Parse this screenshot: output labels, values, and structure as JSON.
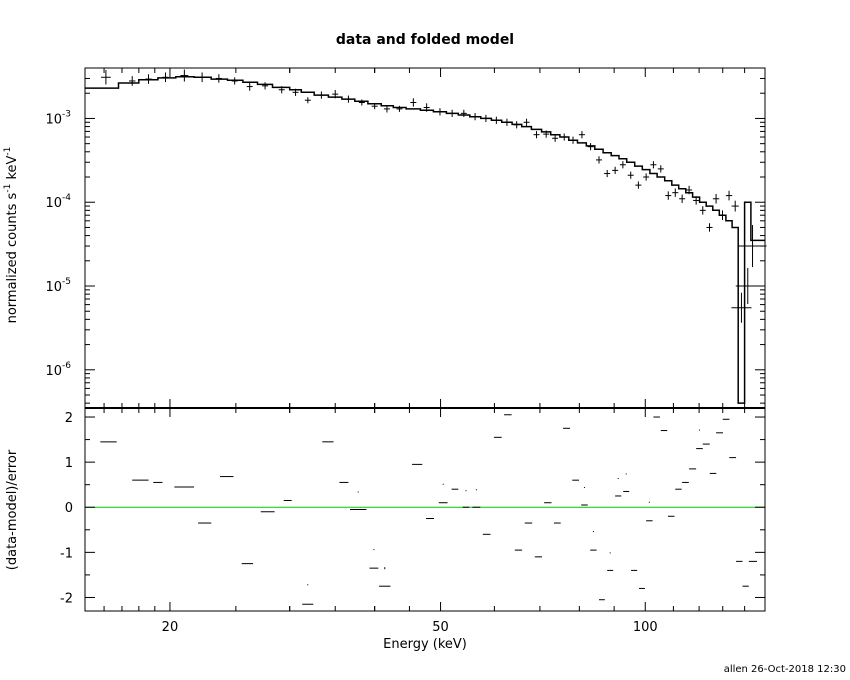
{
  "footer": "allen 26-Oct-2018 12:30",
  "colors": {
    "axis": "#000000",
    "zero_line": "#00cc00",
    "data": "#000000"
  },
  "chart_data": [
    {
      "type": "scatter",
      "title": "data and folded model",
      "xlabel": "",
      "ylabel_main": "normalized counts s",
      "ylabel_tail": " keV",
      "ylabel_sup": "-1",
      "yscale": "log",
      "xscale": "log",
      "xlim": [
        15,
        150
      ],
      "ylim": [
        3.5e-07,
        0.004
      ],
      "yticks": [
        {
          "value": 1e-06,
          "base": "10",
          "exp": "-6"
        },
        {
          "value": 1e-05,
          "base": "10",
          "exp": "-5"
        },
        {
          "value": 0.0001,
          "base": "10",
          "exp": "-4"
        },
        {
          "value": 0.001,
          "base": "10",
          "exp": "-3"
        }
      ],
      "series": [
        {
          "style": "crosses",
          "points": [
            [
              16.1,
              0.0031,
              1.2
            ],
            [
              17.6,
              0.0028,
              0.8
            ],
            [
              18.6,
              0.00295,
              0.8
            ],
            [
              19.7,
              0.0031,
              0.8
            ],
            [
              21.0,
              0.00325,
              1.0
            ],
            [
              22.3,
              0.0031,
              0.8
            ],
            [
              23.6,
              0.003,
              0.7
            ],
            [
              24.9,
              0.0028,
              0.6
            ],
            [
              26.2,
              0.0024,
              0.7
            ],
            [
              27.6,
              0.00245,
              0.6
            ],
            [
              29.2,
              0.0022,
              0.6
            ],
            [
              30.6,
              0.00205,
              0.6
            ],
            [
              31.9,
              0.00165,
              0.5
            ],
            [
              33.4,
              0.0019,
              0.6
            ],
            [
              35.0,
              0.00195,
              0.7
            ],
            [
              36.6,
              0.0017,
              0.6
            ],
            [
              38.3,
              0.00155,
              0.5
            ],
            [
              40.0,
              0.0014,
              0.5
            ],
            [
              41.7,
              0.0013,
              0.6
            ],
            [
              43.5,
              0.0013,
              0.5
            ],
            [
              45.6,
              0.00155,
              0.7
            ],
            [
              47.7,
              0.00135,
              0.7
            ],
            [
              49.9,
              0.0012,
              0.6
            ],
            [
              52.0,
              0.00115,
              0.6
            ],
            [
              54.1,
              0.00115,
              0.6
            ],
            [
              56.2,
              0.00105,
              0.6
            ],
            [
              58.3,
              0.001,
              0.6
            ],
            [
              60.4,
              0.00095,
              0.6
            ],
            [
              62.6,
              0.0009,
              0.6
            ],
            [
              64.7,
              0.00084,
              0.6
            ],
            [
              66.9,
              0.0009,
              0.6
            ],
            [
              69.2,
              0.00064,
              0.6
            ],
            [
              71.5,
              0.00065,
              0.6
            ],
            [
              73.7,
              0.00058,
              0.6
            ],
            [
              76.0,
              0.0006,
              0.6
            ],
            [
              78.3,
              0.00055,
              0.6
            ],
            [
              80.7,
              0.00064,
              0.6
            ],
            [
              83.1,
              0.00046,
              0.6
            ],
            [
              85.5,
              0.00032,
              0.6
            ],
            [
              87.9,
              0.00022,
              0.6
            ],
            [
              90.3,
              0.00024,
              0.6
            ],
            [
              92.7,
              0.00028,
              0.6
            ],
            [
              95.2,
              0.00021,
              0.6
            ],
            [
              97.7,
              0.00016,
              0.6
            ],
            [
              100.3,
              0.0002,
              0.6
            ],
            [
              102.8,
              0.00028,
              0.6
            ],
            [
              105.4,
              0.00025,
              0.6
            ],
            [
              108.1,
              0.00012,
              0.7
            ],
            [
              110.7,
              0.00013,
              0.7
            ],
            [
              113.3,
              0.00011,
              0.7
            ],
            [
              116.0,
              0.00014,
              0.7
            ],
            [
              118.8,
              0.000105,
              0.7
            ],
            [
              121.5,
              8e-05,
              0.7
            ],
            [
              124.3,
              5e-05,
              0.7
            ],
            [
              127.1,
              0.00011,
              0.8
            ],
            [
              129.9,
              7e-05,
              0.8
            ],
            [
              132.8,
              0.00012,
              0.8
            ],
            [
              135.6,
              9e-05,
              0.9
            ],
            [
              138.5,
              5.5e-06,
              2.5
            ],
            [
              141.5,
              1e-05,
              3.0
            ],
            [
              143.8,
              3e-05,
              3.5
            ]
          ]
        },
        {
          "style": "step-model",
          "steps": [
            [
              15,
              16.8,
              0.0023
            ],
            [
              16.8,
              18.0,
              0.00265
            ],
            [
              18.0,
              19.2,
              0.0029
            ],
            [
              19.2,
              20.4,
              0.00305
            ],
            [
              20.4,
              21.7,
              0.00315
            ],
            [
              21.7,
              23.0,
              0.0031
            ],
            [
              23.0,
              24.3,
              0.00295
            ],
            [
              24.3,
              25.6,
              0.00285
            ],
            [
              25.6,
              26.9,
              0.0027
            ],
            [
              26.9,
              28.3,
              0.00255
            ],
            [
              28.3,
              30.0,
              0.00235
            ],
            [
              30.0,
              31.2,
              0.0022
            ],
            [
              31.2,
              32.6,
              0.00205
            ],
            [
              32.6,
              34.2,
              0.0019
            ],
            [
              34.2,
              35.8,
              0.0018
            ],
            [
              35.8,
              37.4,
              0.0017
            ],
            [
              37.4,
              39.1,
              0.0016
            ],
            [
              39.1,
              40.9,
              0.0015
            ],
            [
              40.9,
              42.6,
              0.00142
            ],
            [
              42.6,
              44.5,
              0.00135
            ],
            [
              44.5,
              46.7,
              0.0013
            ],
            [
              46.7,
              48.8,
              0.00125
            ],
            [
              48.8,
              51.0,
              0.0012
            ],
            [
              51.0,
              53.1,
              0.00115
            ],
            [
              53.1,
              55.2,
              0.0011
            ],
            [
              55.2,
              57.3,
              0.00105
            ],
            [
              57.3,
              59.4,
              0.001
            ],
            [
              59.4,
              61.5,
              0.00095
            ],
            [
              61.5,
              63.7,
              0.0009
            ],
            [
              63.7,
              65.8,
              0.00085
            ],
            [
              65.8,
              68.0,
              0.0008
            ],
            [
              68.0,
              70.4,
              0.00074
            ],
            [
              70.4,
              72.6,
              0.00069
            ],
            [
              72.6,
              74.9,
              0.00064
            ],
            [
              74.9,
              77.2,
              0.0006
            ],
            [
              77.2,
              79.5,
              0.00055
            ],
            [
              79.5,
              81.9,
              0.00051
            ],
            [
              81.9,
              84.3,
              0.00047
            ],
            [
              84.3,
              86.7,
              0.00043
            ],
            [
              86.7,
              89.1,
              0.00039
            ],
            [
              89.1,
              91.5,
              0.00036
            ],
            [
              91.5,
              93.9,
              0.00033
            ],
            [
              93.9,
              96.5,
              0.0003
            ],
            [
              96.5,
              99.0,
              0.00027
            ],
            [
              99.0,
              101.6,
              0.000245
            ],
            [
              101.6,
              104.1,
              0.00022
            ],
            [
              104.1,
              106.8,
              0.0002
            ],
            [
              106.8,
              109.4,
              0.00018
            ],
            [
              109.4,
              112.0,
              0.00016
            ],
            [
              112.0,
              114.7,
              0.000145
            ],
            [
              114.7,
              117.4,
              0.00013
            ],
            [
              117.4,
              120.2,
              0.000115
            ],
            [
              120.2,
              122.9,
              0.0001
            ],
            [
              122.9,
              125.7,
              9e-05
            ],
            [
              125.7,
              128.5,
              8e-05
            ],
            [
              128.5,
              131.4,
              7e-05
            ],
            [
              131.4,
              134.2,
              6e-05
            ],
            [
              134.2,
              137.0,
              5e-05
            ],
            [
              137.0,
              140.0,
              4e-07
            ],
            [
              140.0,
              143.0,
              0.0001
            ],
            [
              143.0,
              150.0,
              3.5e-05
            ]
          ]
        }
      ]
    },
    {
      "type": "scatter",
      "title": "",
      "xlabel": "Energy (keV)",
      "ylabel": "(data-model)/error",
      "xscale": "log",
      "xlim": [
        15,
        150
      ],
      "ylim": [
        -2.3,
        2.2
      ],
      "yticks": [
        -2,
        -1,
        0,
        1,
        2
      ],
      "xticks": [
        20,
        50,
        100
      ],
      "zero_line": 0,
      "series": [
        {
          "style": "residual-crosses",
          "points": [
            [
              15.8,
              1.45,
              16.7,
              -0.9,
              0.9
            ],
            [
              17.6,
              0.6,
              18.6,
              -0.95,
              0.95
            ],
            [
              18.9,
              0.55,
              19.5,
              -0.8,
              0.8
            ],
            [
              20.3,
              0.45,
              21.7,
              -0.75,
              0.75
            ],
            [
              22.0,
              -0.35,
              23.0,
              -1.0,
              1.0
            ],
            [
              23.7,
              0.68,
              24.8,
              -0.9,
              0.9
            ],
            [
              25.5,
              -1.25,
              26.5,
              -1.2,
              1.2
            ],
            [
              27.2,
              -0.1,
              28.5,
              -0.85,
              0.85
            ],
            [
              29.4,
              0.15,
              30.2,
              -0.95,
              0.95
            ],
            [
              31.3,
              -2.15,
              32.5,
              -1.0,
              0.95
            ],
            [
              33.5,
              1.45,
              34.8,
              -1.0,
              1.0
            ],
            [
              35.5,
              0.55,
              36.6,
              -0.85,
              0.85
            ],
            [
              36.8,
              -0.05,
              38.9,
              -0.85,
              0.9
            ],
            [
              39.3,
              -1.35,
              40.5,
              -0.9,
              0.95
            ],
            [
              40.6,
              -1.75,
              42.2,
              -0.85,
              0.95
            ],
            [
              43.7,
              2.3,
              45.0,
              -0.95,
              0.95
            ],
            [
              45.4,
              0.95,
              47.0,
              -1.0,
              1.0
            ],
            [
              47.6,
              -0.25,
              48.9,
              -0.85,
              0.85
            ],
            [
              49.7,
              0.1,
              51.2,
              -0.9,
              0.95
            ],
            [
              51.9,
              0.4,
              53.1,
              -0.9,
              0.9
            ],
            [
              53.9,
              0.0,
              55.1,
              -0.8,
              0.85
            ],
            [
              55.7,
              0.0,
              57.2,
              -0.85,
              0.9
            ],
            [
              57.7,
              -0.6,
              59.2,
              -0.95,
              0.95
            ],
            [
              59.9,
              1.55,
              61.5,
              -0.9,
              0.9
            ],
            [
              62.0,
              2.05,
              63.6,
              -1.0,
              0.95
            ],
            [
              64.3,
              -0.95,
              65.9,
              -0.9,
              0.9
            ],
            [
              66.5,
              -0.35,
              68.2,
              -0.95,
              0.95
            ],
            [
              68.8,
              -1.1,
              70.5,
              -0.85,
              0.85
            ],
            [
              71.0,
              0.1,
              72.8,
              -0.95,
              0.95
            ],
            [
              73.4,
              -0.35,
              75.1,
              -0.85,
              0.85
            ],
            [
              75.7,
              1.75,
              77.5,
              -0.95,
              0.95
            ],
            [
              78.1,
              0.6,
              79.9,
              -0.9,
              0.9
            ],
            [
              80.5,
              0.05,
              82.3,
              -0.85,
              0.9
            ],
            [
              83.0,
              -0.95,
              84.8,
              -0.9,
              0.95
            ],
            [
              85.5,
              -2.05,
              87.2,
              -0.95,
              0.95
            ],
            [
              87.9,
              -1.4,
              89.7,
              -0.85,
              0.9
            ],
            [
              90.3,
              0.25,
              92.2,
              -0.9,
              0.85
            ],
            [
              92.8,
              0.35,
              94.7,
              -0.9,
              0.85
            ],
            [
              95.3,
              -1.4,
              97.3,
              -0.85,
              0.85
            ],
            [
              97.9,
              -1.8,
              99.9,
              -0.95,
              0.95
            ],
            [
              100.3,
              -0.3,
              102.5,
              -0.9,
              0.95
            ],
            [
              102.8,
              2.0,
              105.1,
              -0.95,
              0.95
            ],
            [
              105.4,
              1.7,
              107.7,
              -0.9,
              0.9
            ],
            [
              108.0,
              -0.2,
              110.4,
              -0.9,
              0.9
            ],
            [
              110.7,
              0.4,
              113.1,
              -0.85,
              0.85
            ],
            [
              113.3,
              0.55,
              115.9,
              -0.9,
              0.9
            ],
            [
              116.0,
              0.85,
              118.8,
              -0.95,
              0.95
            ],
            [
              118.8,
              1.3,
              121.5,
              -0.95,
              0.9
            ],
            [
              121.5,
              1.4,
              124.4,
              -0.9,
              0.9
            ],
            [
              124.4,
              0.75,
              127.2,
              -0.85,
              0.85
            ],
            [
              127.1,
              1.65,
              130.1,
              -0.9,
              0.9
            ],
            [
              130.0,
              1.95,
              133.0,
              -0.95,
              0.95
            ],
            [
              132.9,
              1.1,
              136.0,
              -0.95,
              0.95
            ],
            [
              136.0,
              -1.2,
              139.0,
              -0.9,
              0.9
            ],
            [
              139.0,
              -1.75,
              142.0,
              -0.9,
              0.9
            ],
            [
              142.0,
              -1.2,
              146.0,
              -0.95,
              0.95
            ]
          ]
        }
      ]
    }
  ]
}
